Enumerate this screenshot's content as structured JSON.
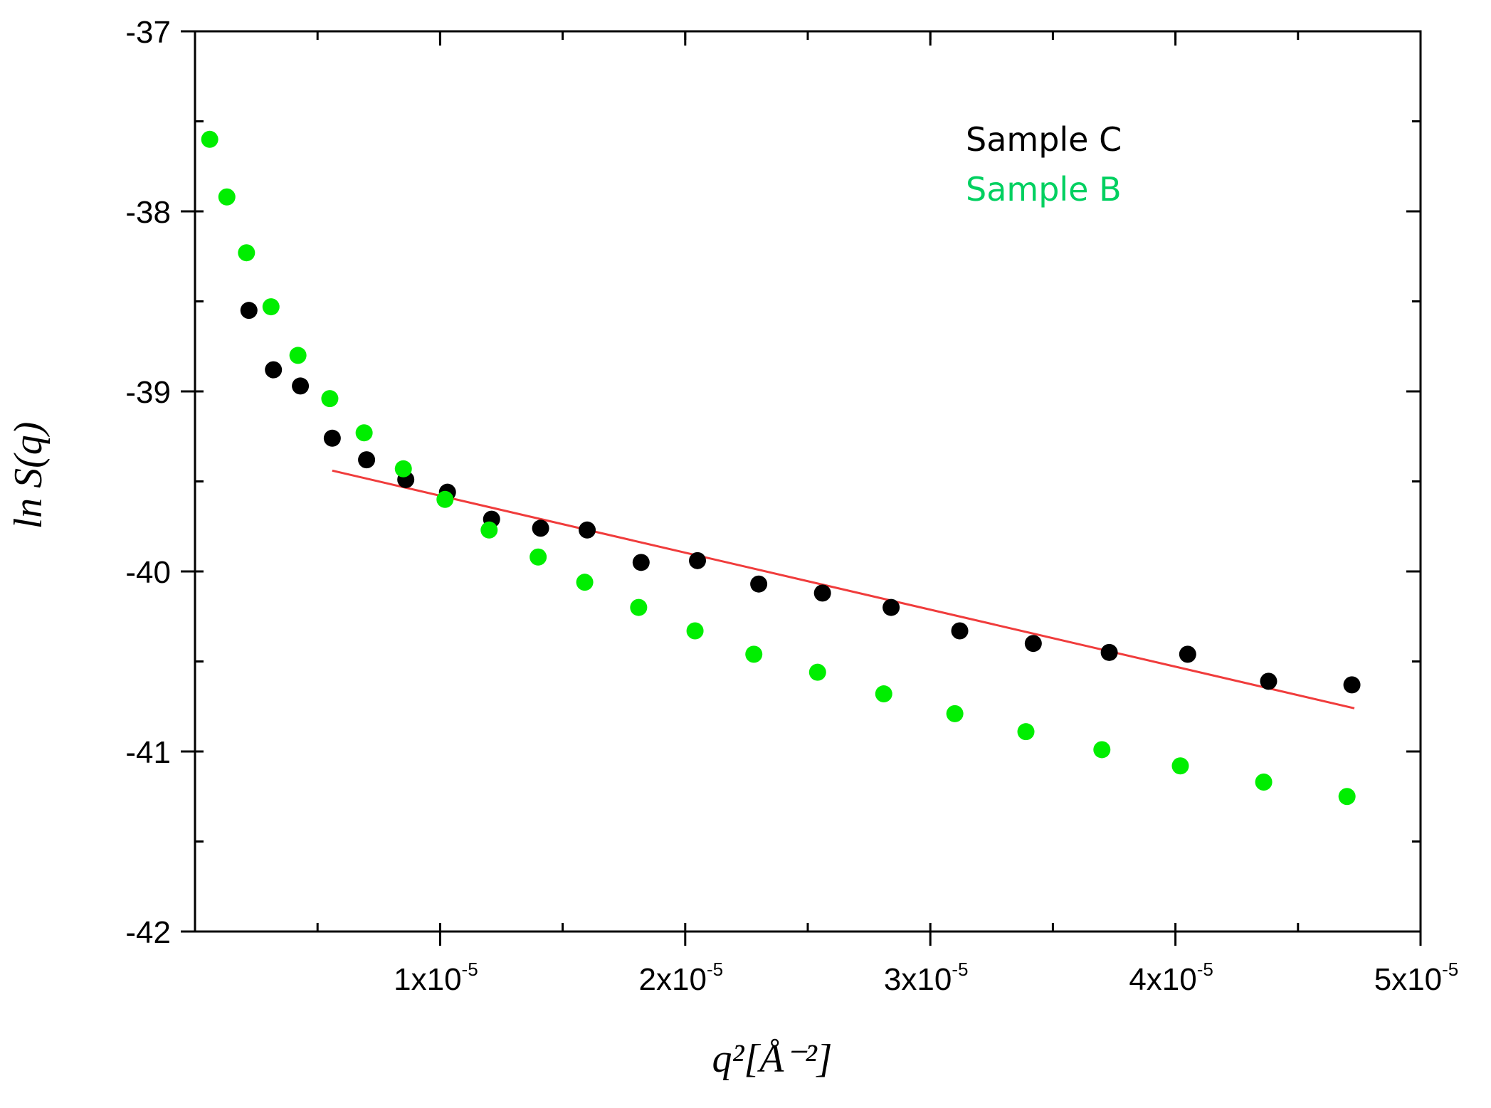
{
  "chart_data": {
    "type": "scatter",
    "title": "",
    "xlabel": "q²[Å⁻²]",
    "ylabel": "ln S(q)",
    "xlim": [
      0,
      5e-05
    ],
    "ylim": [
      -42,
      -37
    ],
    "x_ticks": [
      {
        "value": 1e-05,
        "mantissa": "1x10",
        "exponent": "-5"
      },
      {
        "value": 2e-05,
        "mantissa": "2x10",
        "exponent": "-5"
      },
      {
        "value": 3e-05,
        "mantissa": "3x10",
        "exponent": "-5"
      },
      {
        "value": 4e-05,
        "mantissa": "4x10",
        "exponent": "-5"
      },
      {
        "value": 5e-05,
        "mantissa": "5x10",
        "exponent": "-5"
      }
    ],
    "y_ticks": [
      {
        "value": -37,
        "label": "-37"
      },
      {
        "value": -38,
        "label": "-38"
      },
      {
        "value": -39,
        "label": "-39"
      },
      {
        "value": -40,
        "label": "-40"
      },
      {
        "value": -41,
        "label": "-41"
      },
      {
        "value": -42,
        "label": "-42"
      }
    ],
    "x_minor_step": 5e-06,
    "y_minor_step": 0.5,
    "grid": false,
    "legend_position": "top-right",
    "series": [
      {
        "name": "Sample C",
        "color": "#000000",
        "points": [
          [
            2.2e-06,
            -38.55
          ],
          [
            3.2e-06,
            -38.88
          ],
          [
            4.3e-06,
            -38.97
          ],
          [
            5.6e-06,
            -39.26
          ],
          [
            7e-06,
            -39.38
          ],
          [
            8.6e-06,
            -39.49
          ],
          [
            1.03e-05,
            -39.56
          ],
          [
            1.21e-05,
            -39.71
          ],
          [
            1.41e-05,
            -39.76
          ],
          [
            1.6e-05,
            -39.77
          ],
          [
            1.82e-05,
            -39.95
          ],
          [
            2.05e-05,
            -39.94
          ],
          [
            2.3e-05,
            -40.07
          ],
          [
            2.56e-05,
            -40.12
          ],
          [
            2.84e-05,
            -40.2
          ],
          [
            3.12e-05,
            -40.33
          ],
          [
            3.42e-05,
            -40.4
          ],
          [
            3.73e-05,
            -40.45
          ],
          [
            4.05e-05,
            -40.46
          ],
          [
            4.38e-05,
            -40.61
          ],
          [
            4.72e-05,
            -40.63
          ]
        ]
      },
      {
        "name": "Sample B",
        "color": "#00ee00",
        "points": [
          [
            6e-07,
            -37.6
          ],
          [
            1.3e-06,
            -37.92
          ],
          [
            2.1e-06,
            -38.23
          ],
          [
            3.1e-06,
            -38.53
          ],
          [
            4.2e-06,
            -38.8
          ],
          [
            5.5e-06,
            -39.04
          ],
          [
            6.9e-06,
            -39.23
          ],
          [
            8.5e-06,
            -39.43
          ],
          [
            1.02e-05,
            -39.6
          ],
          [
            1.2e-05,
            -39.77
          ],
          [
            1.4e-05,
            -39.92
          ],
          [
            1.59e-05,
            -40.06
          ],
          [
            1.81e-05,
            -40.2
          ],
          [
            2.04e-05,
            -40.33
          ],
          [
            2.28e-05,
            -40.46
          ],
          [
            2.54e-05,
            -40.56
          ],
          [
            2.81e-05,
            -40.68
          ],
          [
            3.1e-05,
            -40.79
          ],
          [
            3.39e-05,
            -40.89
          ],
          [
            3.7e-05,
            -40.99
          ],
          [
            4.02e-05,
            -41.08
          ],
          [
            4.36e-05,
            -41.17
          ],
          [
            4.7e-05,
            -41.25
          ]
        ]
      }
    ],
    "fit_line": {
      "name": "linear fit",
      "color": "#f03c3c",
      "x": [
        5.6e-06,
        4.73e-05
      ],
      "y": [
        -39.44,
        -40.76
      ]
    }
  }
}
